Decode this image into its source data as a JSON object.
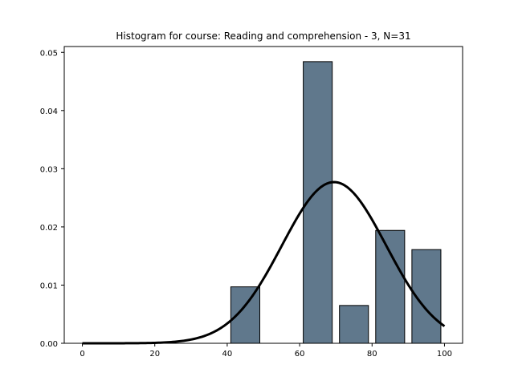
{
  "chart_data": {
    "type": "bar",
    "title": "Histogram for course: Reading and comprehension - 3,  N=31",
    "xlabel": "",
    "ylabel": "",
    "xlim": [
      -5,
      105
    ],
    "ylim": [
      0,
      0.051
    ],
    "x_ticks": [
      0,
      20,
      40,
      60,
      80,
      100
    ],
    "y_ticks": [
      0.0,
      0.01,
      0.02,
      0.03,
      0.04,
      0.05
    ],
    "y_tick_labels": [
      "0.00",
      "0.01",
      "0.02",
      "0.03",
      "0.04",
      "0.05"
    ],
    "bins": [
      {
        "x0": 41,
        "x1": 49,
        "value": 0.0097
      },
      {
        "x0": 61,
        "x1": 69,
        "value": 0.0484
      },
      {
        "x0": 71,
        "x1": 79,
        "value": 0.0065
      },
      {
        "x0": 81,
        "x1": 89,
        "value": 0.0194
      },
      {
        "x0": 91,
        "x1": 99,
        "value": 0.0161
      }
    ],
    "fit_curve": {
      "type": "normal",
      "mean": 69.5,
      "sd": 14.4,
      "x_range": [
        0,
        100
      ]
    },
    "bar_color": "#60788c",
    "bar_edge_color": "#000000",
    "curve_color": "#000000",
    "grid": false,
    "legend": "none"
  }
}
